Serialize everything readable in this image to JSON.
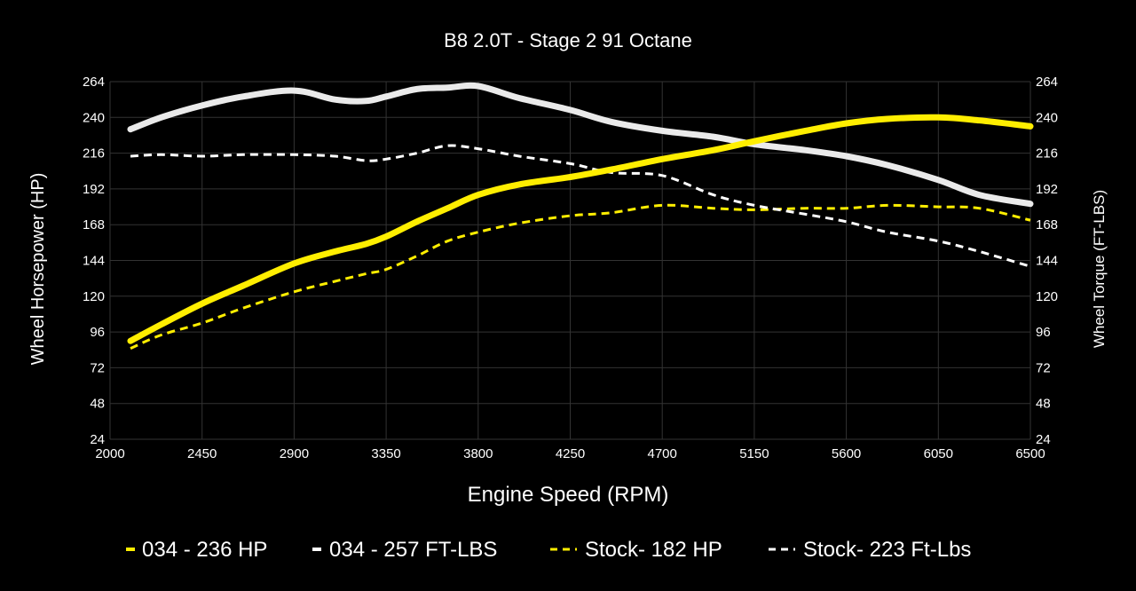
{
  "chart_data": {
    "type": "line",
    "title": "B8 2.0T - Stage 2 91 Octane",
    "xlabel": "Engine Speed (RPM)",
    "ylabel_left": "Wheel Horsepower (HP)",
    "ylabel_right": "Wheel Torque (FT-LBS)",
    "xlim": [
      2000,
      6500
    ],
    "ylim": [
      24,
      264
    ],
    "x_ticks": [
      2000,
      2450,
      2900,
      3350,
      3800,
      4250,
      4700,
      5150,
      5600,
      6050,
      6500
    ],
    "y_ticks": [
      24,
      48,
      72,
      96,
      120,
      144,
      168,
      192,
      216,
      240,
      264
    ],
    "grid": true,
    "legend_position": "bottom",
    "x": [
      2100,
      2250,
      2450,
      2650,
      2900,
      3100,
      3250,
      3350,
      3500,
      3650,
      3800,
      4000,
      4250,
      4450,
      4700,
      4950,
      5150,
      5400,
      5600,
      5800,
      6050,
      6250,
      6500
    ],
    "series": [
      {
        "name": "034 - 236 HP",
        "color": "#ffee00",
        "style": "solid",
        "width": 7,
        "values": [
          90,
          101,
          115,
          127,
          142,
          150,
          155,
          160,
          170,
          179,
          188,
          195,
          200,
          205,
          212,
          218,
          224,
          231,
          236,
          239,
          240,
          238,
          234
        ]
      },
      {
        "name": "034 - 257 FT-LBS",
        "color": "#eaeaea",
        "style": "solid",
        "width": 7,
        "values": [
          232,
          240,
          248,
          254,
          258,
          252,
          251,
          254,
          259,
          260,
          261,
          253,
          245,
          237,
          231,
          227,
          222,
          218,
          214,
          208,
          198,
          188,
          182
        ]
      },
      {
        "name": "Stock- 182 HP",
        "color": "#ffee00",
        "style": "dashed",
        "width": 3,
        "values": [
          85,
          94,
          102,
          112,
          123,
          130,
          135,
          138,
          147,
          157,
          163,
          169,
          174,
          176,
          181,
          179,
          178,
          179,
          179,
          181,
          180,
          179,
          171
        ]
      },
      {
        "name": "Stock- 223 Ft-Lbs",
        "color": "#ffffff",
        "style": "dashed",
        "width": 3,
        "values": [
          214,
          215,
          214,
          215,
          215,
          214,
          211,
          212,
          216,
          221,
          219,
          214,
          209,
          203,
          201,
          188,
          181,
          175,
          170,
          163,
          157,
          150,
          140
        ]
      }
    ]
  }
}
